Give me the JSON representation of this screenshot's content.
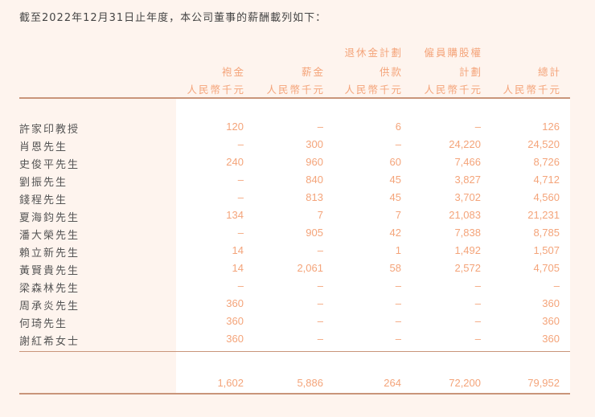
{
  "intro": "截至2022年12月31日止年度，本公司董事的薪酬載列如下：",
  "columns": [
    {
      "line1": "",
      "line2": "袍金",
      "unit": "人民幣千元"
    },
    {
      "line1": "",
      "line2": "薪金",
      "unit": "人民幣千元"
    },
    {
      "line1": "退休金計劃",
      "line2": "供款",
      "unit": "人民幣千元"
    },
    {
      "line1": "僱員購股權",
      "line2": "計劃",
      "unit": "人民幣千元"
    },
    {
      "line1": "",
      "line2": "總計",
      "unit": "人民幣千元"
    }
  ],
  "rows": [
    {
      "name": "許家印教授",
      "v": [
        "120",
        "–",
        "6",
        "–",
        "126"
      ]
    },
    {
      "name": "肖恩先生",
      "v": [
        "–",
        "300",
        "–",
        "24,220",
        "24,520"
      ]
    },
    {
      "name": "史俊平先生",
      "v": [
        "240",
        "960",
        "60",
        "7,466",
        "8,726"
      ]
    },
    {
      "name": "劉振先生",
      "v": [
        "–",
        "840",
        "45",
        "3,827",
        "4,712"
      ]
    },
    {
      "name": "錢程先生",
      "v": [
        "–",
        "813",
        "45",
        "3,702",
        "4,560"
      ]
    },
    {
      "name": "夏海鈞先生",
      "v": [
        "134",
        "7",
        "7",
        "21,083",
        "21,231"
      ]
    },
    {
      "name": "潘大榮先生",
      "v": [
        "–",
        "905",
        "42",
        "7,838",
        "8,785"
      ]
    },
    {
      "name": "賴立新先生",
      "v": [
        "14",
        "–",
        "1",
        "1,492",
        "1,507"
      ]
    },
    {
      "name": "黃賢貴先生",
      "v": [
        "14",
        "2,061",
        "58",
        "2,572",
        "4,705"
      ]
    },
    {
      "name": "梁森林先生",
      "v": [
        "–",
        "–",
        "–",
        "–",
        "–"
      ]
    },
    {
      "name": "周承炎先生",
      "v": [
        "360",
        "–",
        "–",
        "–",
        "360"
      ]
    },
    {
      "name": "何琦先生",
      "v": [
        "360",
        "–",
        "–",
        "–",
        "360"
      ]
    },
    {
      "name": "謝紅希女士",
      "v": [
        "360",
        "–",
        "–",
        "–",
        "360"
      ]
    }
  ],
  "totals": [
    "1,602",
    "5,886",
    "264",
    "72,200",
    "79,952"
  ],
  "colors": {
    "accent": "#f4a47a",
    "rule": "#c9957a",
    "background": "#fef4ee"
  }
}
